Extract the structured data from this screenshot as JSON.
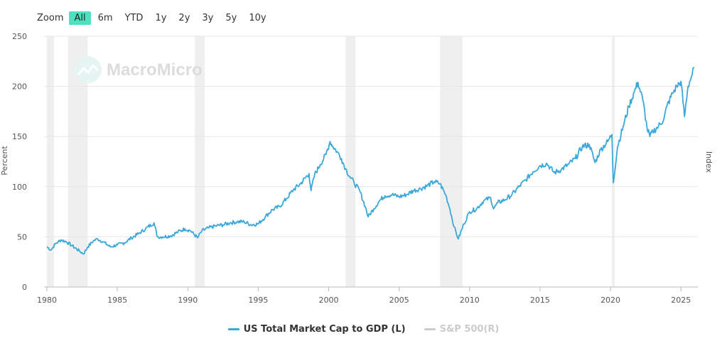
{
  "zoom": {
    "label": "Zoom",
    "buttons": [
      "All",
      "6m",
      "YTD",
      "1y",
      "2y",
      "3y",
      "5y",
      "10y"
    ],
    "active": "All"
  },
  "watermark": "MacroMicro",
  "chart_data": {
    "type": "line",
    "title": "",
    "ylabel": "Percent",
    "ylabel_right": "Index",
    "xlim": [
      1979.8,
      2026.2
    ],
    "ylim": [
      0,
      250
    ],
    "yticks": [
      0,
      50,
      100,
      150,
      200,
      250
    ],
    "xticks": [
      1980,
      1985,
      1990,
      1995,
      2000,
      2005,
      2010,
      2015,
      2020,
      2025
    ],
    "recessions": [
      [
        1980.0,
        1980.5
      ],
      [
        1981.5,
        1982.9
      ],
      [
        1990.5,
        1991.2
      ],
      [
        2001.2,
        2001.9
      ],
      [
        2007.9,
        2009.5
      ],
      [
        2020.1,
        2020.3
      ]
    ],
    "series": [
      {
        "name": "US Total Market Cap to GDP (L)",
        "color": "#3aa8d8",
        "visible": true,
        "points": [
          [
            1980.0,
            40
          ],
          [
            1980.3,
            37
          ],
          [
            1980.6,
            43
          ],
          [
            1981.0,
            47
          ],
          [
            1981.4,
            45
          ],
          [
            1981.8,
            41
          ],
          [
            1982.3,
            36
          ],
          [
            1982.6,
            33
          ],
          [
            1982.9,
            40
          ],
          [
            1983.3,
            46
          ],
          [
            1983.6,
            48
          ],
          [
            1984.0,
            45
          ],
          [
            1984.5,
            40
          ],
          [
            1985.0,
            42
          ],
          [
            1985.5,
            44
          ],
          [
            1986.0,
            49
          ],
          [
            1986.5,
            53
          ],
          [
            1987.0,
            58
          ],
          [
            1987.6,
            64
          ],
          [
            1987.85,
            50
          ],
          [
            1988.2,
            50
          ],
          [
            1988.8,
            51
          ],
          [
            1989.3,
            55
          ],
          [
            1989.8,
            58
          ],
          [
            1990.2,
            56
          ],
          [
            1990.7,
            49
          ],
          [
            1991.0,
            56
          ],
          [
            1991.5,
            59
          ],
          [
            1992.0,
            61
          ],
          [
            1992.5,
            62
          ],
          [
            1993.0,
            64
          ],
          [
            1993.5,
            65
          ],
          [
            1994.0,
            65
          ],
          [
            1994.5,
            62
          ],
          [
            1995.0,
            63
          ],
          [
            1995.5,
            70
          ],
          [
            1996.0,
            77
          ],
          [
            1996.5,
            80
          ],
          [
            1997.0,
            88
          ],
          [
            1997.5,
            97
          ],
          [
            1998.0,
            103
          ],
          [
            1998.6,
            113
          ],
          [
            1998.75,
            96
          ],
          [
            1999.0,
            112
          ],
          [
            1999.4,
            122
          ],
          [
            1999.8,
            132
          ],
          [
            2000.1,
            145
          ],
          [
            2000.3,
            140
          ],
          [
            2000.6,
            135
          ],
          [
            2000.9,
            128
          ],
          [
            2001.2,
            118
          ],
          [
            2001.5,
            110
          ],
          [
            2001.8,
            104
          ],
          [
            2002.2,
            96
          ],
          [
            2002.6,
            80
          ],
          [
            2002.8,
            70
          ],
          [
            2003.2,
            78
          ],
          [
            2003.6,
            86
          ],
          [
            2004.0,
            91
          ],
          [
            2004.5,
            92
          ],
          [
            2005.0,
            90
          ],
          [
            2005.5,
            92
          ],
          [
            2006.0,
            96
          ],
          [
            2006.5,
            98
          ],
          [
            2007.0,
            101
          ],
          [
            2007.5,
            105
          ],
          [
            2007.9,
            103
          ],
          [
            2008.3,
            92
          ],
          [
            2008.6,
            78
          ],
          [
            2008.9,
            60
          ],
          [
            2009.2,
            48
          ],
          [
            2009.6,
            63
          ],
          [
            2010.0,
            75
          ],
          [
            2010.5,
            78
          ],
          [
            2011.0,
            86
          ],
          [
            2011.5,
            89
          ],
          [
            2011.7,
            78
          ],
          [
            2012.0,
            84
          ],
          [
            2012.5,
            87
          ],
          [
            2013.0,
            92
          ],
          [
            2013.5,
            100
          ],
          [
            2014.0,
            107
          ],
          [
            2014.5,
            115
          ],
          [
            2015.0,
            121
          ],
          [
            2015.5,
            123
          ],
          [
            2016.0,
            114
          ],
          [
            2016.5,
            117
          ],
          [
            2017.0,
            122
          ],
          [
            2017.5,
            128
          ],
          [
            2018.0,
            140
          ],
          [
            2018.5,
            142
          ],
          [
            2018.9,
            124
          ],
          [
            2019.3,
            137
          ],
          [
            2019.8,
            145
          ],
          [
            2020.1,
            152
          ],
          [
            2020.2,
            104
          ],
          [
            2020.5,
            140
          ],
          [
            2020.9,
            160
          ],
          [
            2021.3,
            180
          ],
          [
            2021.7,
            195
          ],
          [
            2021.95,
            204
          ],
          [
            2022.3,
            186
          ],
          [
            2022.6,
            158
          ],
          [
            2022.8,
            150
          ],
          [
            2023.0,
            155
          ],
          [
            2023.4,
            160
          ],
          [
            2023.8,
            168
          ],
          [
            2024.0,
            180
          ],
          [
            2024.4,
            193
          ],
          [
            2024.7,
            200
          ],
          [
            2025.0,
            205
          ],
          [
            2025.25,
            170
          ],
          [
            2025.5,
            200
          ],
          [
            2025.8,
            212
          ],
          [
            2025.95,
            219
          ]
        ]
      },
      {
        "name": "S&P 500(R)",
        "color": "#cccccc",
        "visible": false,
        "points": []
      }
    ]
  }
}
